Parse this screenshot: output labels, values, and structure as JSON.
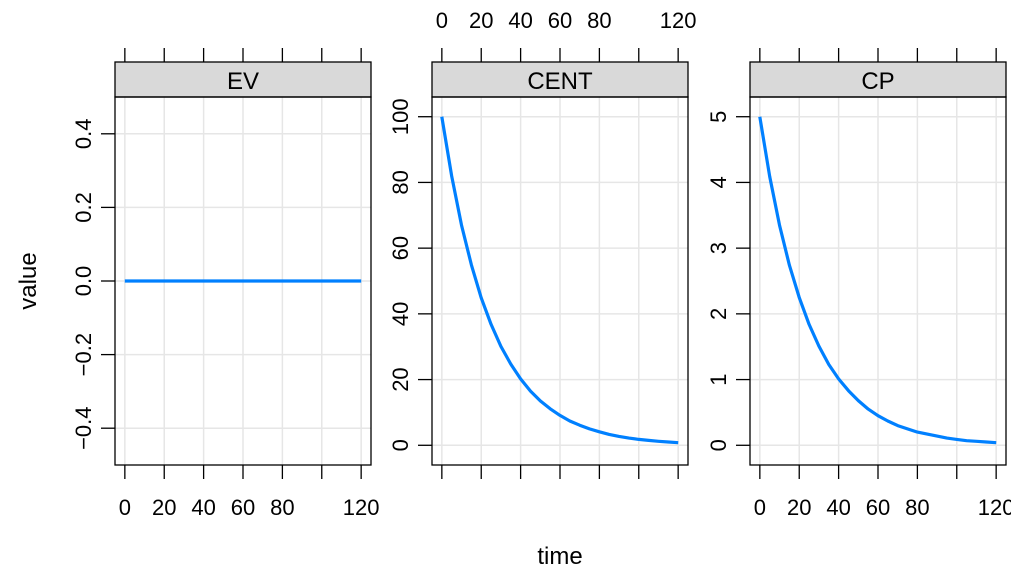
{
  "chart_data": {
    "type": "line",
    "xlabel": "time",
    "ylabel": "value",
    "xlim": [
      -5,
      125
    ],
    "x_ticks": [
      0,
      20,
      40,
      60,
      80,
      100,
      120
    ],
    "x_tick_labels": [
      "0",
      "20",
      "40",
      "60",
      "80",
      "",
      "120"
    ],
    "grid": true,
    "line_color": "#0080ff",
    "strip_color": "#d9d9d9",
    "grid_color": "#e6e6e6",
    "panels": [
      {
        "name": "EV",
        "ylim": [
          -0.5,
          0.5
        ],
        "y_ticks": [
          -0.4,
          -0.2,
          0.0,
          0.2,
          0.4
        ],
        "y_tick_labels": [
          "−0.4",
          "−0.2",
          "0.0",
          "0.2",
          "0.4"
        ],
        "x": [
          0,
          10,
          20,
          30,
          40,
          50,
          60,
          70,
          80,
          90,
          100,
          110,
          120
        ],
        "y": [
          0,
          0,
          0,
          0,
          0,
          0,
          0,
          0,
          0,
          0,
          0,
          0,
          0
        ]
      },
      {
        "name": "CENT",
        "ylim": [
          -6,
          106
        ],
        "y_ticks": [
          0,
          20,
          40,
          60,
          80,
          100
        ],
        "y_tick_labels": [
          "0",
          "20",
          "40",
          "60",
          "80",
          "100"
        ],
        "x": [
          0,
          5,
          10,
          15,
          20,
          25,
          30,
          35,
          40,
          45,
          50,
          55,
          60,
          65,
          70,
          75,
          80,
          85,
          90,
          95,
          100,
          105,
          110,
          115,
          120
        ],
        "y": [
          100,
          81.9,
          67.0,
          54.9,
          44.9,
          36.8,
          30.1,
          24.7,
          20.2,
          16.5,
          13.5,
          11.1,
          9.1,
          7.4,
          6.1,
          5.0,
          4.1,
          3.3,
          2.7,
          2.2,
          1.8,
          1.5,
          1.2,
          1.0,
          0.8
        ]
      },
      {
        "name": "CP",
        "ylim": [
          -0.3,
          5.3
        ],
        "y_ticks": [
          0,
          1,
          2,
          3,
          4,
          5
        ],
        "y_tick_labels": [
          "0",
          "1",
          "2",
          "3",
          "4",
          "5"
        ],
        "x": [
          0,
          5,
          10,
          15,
          20,
          25,
          30,
          35,
          40,
          45,
          50,
          55,
          60,
          65,
          70,
          75,
          80,
          85,
          90,
          95,
          100,
          105,
          110,
          115,
          120
        ],
        "y": [
          5.0,
          4.09,
          3.35,
          2.74,
          2.25,
          1.84,
          1.51,
          1.23,
          1.01,
          0.83,
          0.68,
          0.55,
          0.45,
          0.37,
          0.3,
          0.25,
          0.2,
          0.17,
          0.14,
          0.11,
          0.09,
          0.07,
          0.06,
          0.05,
          0.04
        ]
      }
    ]
  }
}
